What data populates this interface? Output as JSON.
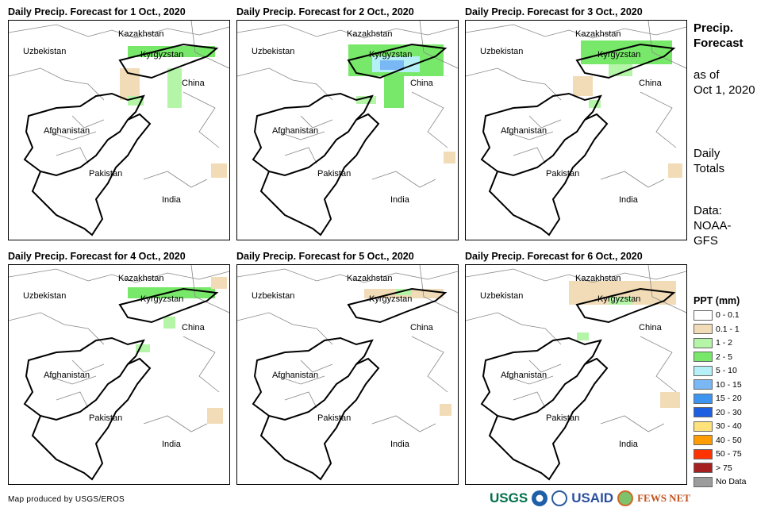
{
  "panels": [
    {
      "title": "Daily Precip. Forecast for 1 Oct., 2020"
    },
    {
      "title": "Daily Precip. Forecast for 2 Oct., 2020"
    },
    {
      "title": "Daily Precip. Forecast for 3 Oct., 2020"
    },
    {
      "title": "Daily Precip. Forecast for 4 Oct., 2020"
    },
    {
      "title": "Daily Precip. Forecast for 5 Oct., 2020"
    },
    {
      "title": "Daily Precip. Forecast for 6 Oct., 2020"
    }
  ],
  "map_labels": {
    "kazakhstan": "Kazakhstan",
    "uzbekistan": "Uzbekistan",
    "kyrgyzstan": "Kyrgyzstan",
    "china": "China",
    "afghanistan": "Afghanistan",
    "pakistan": "Pakistan",
    "india": "India"
  },
  "side": {
    "title1": "Precip.",
    "title2": "Forecast",
    "asof1": "as of",
    "asof2": "Oct 1, 2020",
    "daily1": "Daily",
    "daily2": "Totals",
    "data1": "Data:",
    "data2": "NOAA-",
    "data3": "GFS"
  },
  "legend": {
    "title": "PPT (mm)",
    "items": [
      {
        "label": "0 - 0.1",
        "color": "#ffffff"
      },
      {
        "label": "0.1 - 1",
        "color": "#f2dcb8"
      },
      {
        "label": "1 - 2",
        "color": "#b4f5a8"
      },
      {
        "label": "2 - 5",
        "color": "#78e86a"
      },
      {
        "label": "5 - 10",
        "color": "#b5f0f7"
      },
      {
        "label": "10 - 15",
        "color": "#7ab8f5"
      },
      {
        "label": "15 - 20",
        "color": "#3d95f0"
      },
      {
        "label": "20 - 30",
        "color": "#1c5fe0"
      },
      {
        "label": "30 - 40",
        "color": "#ffe37a"
      },
      {
        "label": "40 - 50",
        "color": "#ff9d00"
      },
      {
        "label": "50 - 75",
        "color": "#ff3300"
      },
      {
        "label": "> 75",
        "color": "#a52020"
      },
      {
        "label": "No Data",
        "color": "#9c9c9c"
      }
    ]
  },
  "footer": {
    "credit": "Map produced by USGS/EROS",
    "logos": [
      "USGS",
      "NOAA",
      "USAID",
      "FEWS NET"
    ]
  }
}
